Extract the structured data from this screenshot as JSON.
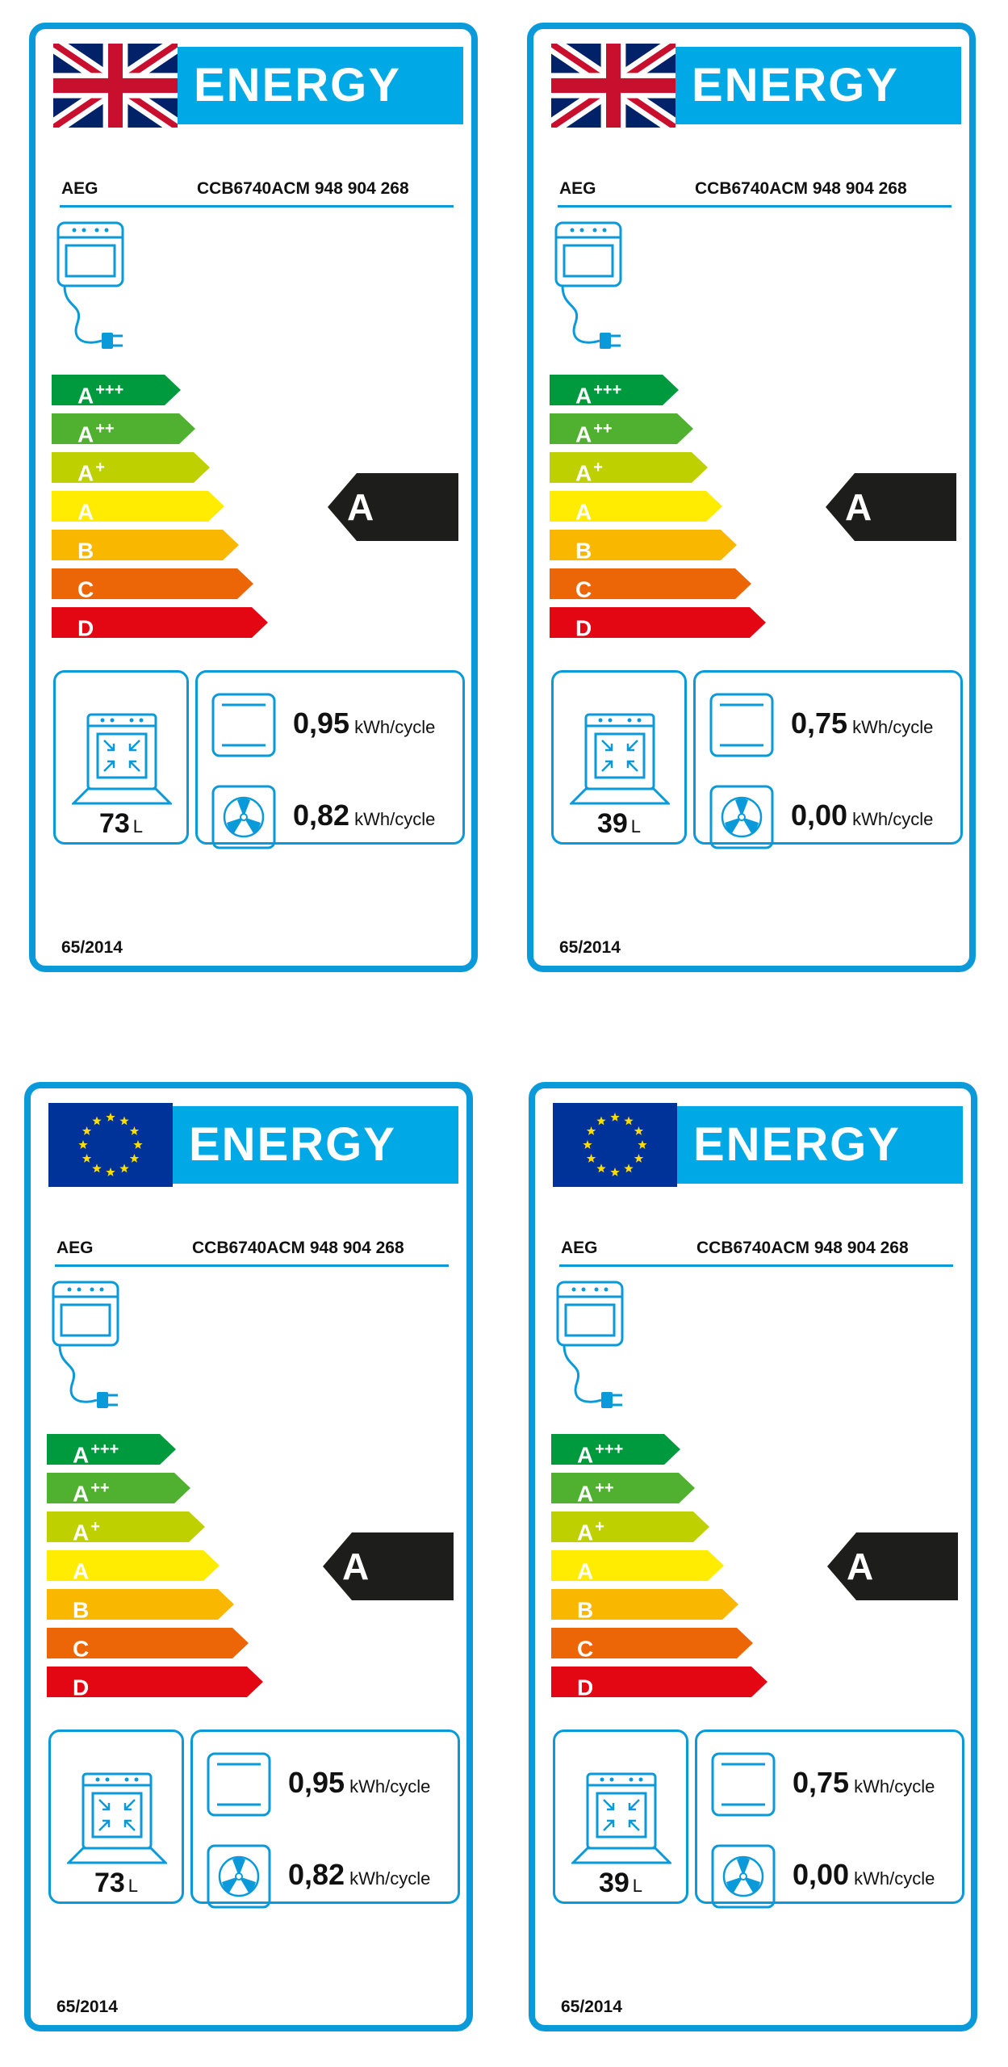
{
  "title": "ENERGY",
  "colors": {
    "border": "#0a9ad9",
    "banner": "#00a8e6",
    "scale": [
      "#009a3e",
      "#50b130",
      "#bed000",
      "#ffec00",
      "#fab700",
      "#ec6608",
      "#e30613"
    ],
    "rating_arrow": "#1d1d1b"
  },
  "scale_classes": [
    {
      "letter": "A",
      "sup": "+++"
    },
    {
      "letter": "A",
      "sup": "++"
    },
    {
      "letter": "A",
      "sup": "+"
    },
    {
      "letter": "A",
      "sup": ""
    },
    {
      "letter": "B",
      "sup": ""
    },
    {
      "letter": "C",
      "sup": ""
    },
    {
      "letter": "D",
      "sup": ""
    }
  ],
  "labels": [
    {
      "flag": "uk-flag-icon",
      "heading": "ENERGY",
      "supplier": "AEG",
      "model": "CCB6740ACM  948 904 268",
      "rating": "A",
      "volume": "73",
      "volume_unit": "L",
      "energy_conventional": "0,95",
      "energy_fan": "0,82",
      "energy_unit": "kWh/cycle",
      "regulation": "65/2014"
    },
    {
      "flag": "uk-flag-icon",
      "heading": "ENERGY",
      "supplier": "AEG",
      "model": "CCB6740ACM  948 904 268",
      "rating": "A",
      "volume": "39",
      "volume_unit": "L",
      "energy_conventional": "0,75",
      "energy_fan": "0,00",
      "energy_unit": "kWh/cycle",
      "regulation": "65/2014"
    },
    {
      "flag": "eu-flag-icon",
      "heading": "ENERGY",
      "supplier": "AEG",
      "model": "CCB6740ACM  948 904 268",
      "rating": "A",
      "volume": "73",
      "volume_unit": "L",
      "energy_conventional": "0,95",
      "energy_fan": "0,82",
      "energy_unit": "kWh/cycle",
      "regulation": "65/2014"
    },
    {
      "flag": "eu-flag-icon",
      "heading": "ENERGY",
      "supplier": "AEG",
      "model": "CCB6740ACM  948 904 268",
      "rating": "A",
      "volume": "39",
      "volume_unit": "L",
      "energy_conventional": "0,75",
      "energy_fan": "0,00",
      "energy_unit": "kWh/cycle",
      "regulation": "65/2014"
    }
  ]
}
